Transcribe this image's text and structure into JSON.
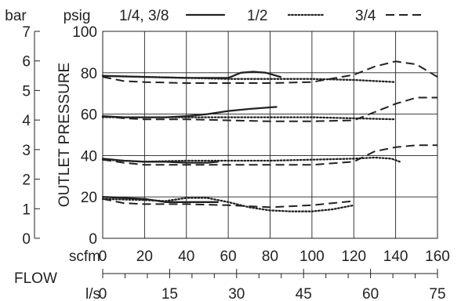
{
  "chart_data": {
    "type": "line",
    "ylabel": "OUTLET PRESSURE",
    "xlabel": "FLOW",
    "y_psig": {
      "unit": "psig",
      "range": [
        0,
        100
      ],
      "ticks": [
        0,
        20,
        40,
        60,
        80,
        100
      ]
    },
    "y_bar": {
      "unit": "bar",
      "range": [
        0,
        7
      ],
      "ticks": [
        0,
        1,
        2,
        3,
        4,
        5,
        6,
        7
      ]
    },
    "x_scfm": {
      "unit": "scfm",
      "range": [
        0,
        160
      ],
      "ticks": [
        0,
        20,
        40,
        60,
        80,
        100,
        120,
        140,
        160
      ]
    },
    "x_ls": {
      "unit": "l/s",
      "range": [
        0,
        75
      ],
      "ticks": [
        0,
        15,
        30,
        45,
        60,
        75
      ],
      "minor_step": 5
    },
    "grid": true,
    "legend_placement": "top",
    "series": [
      {
        "name": "1/4, 3/8",
        "style": "solid",
        "curves": [
          [
            [
              0,
              20
            ],
            [
              10,
              19.5
            ],
            [
              20,
              19
            ],
            [
              30,
              17.5
            ],
            [
              40,
              17.5
            ],
            [
              50,
              17.5
            ],
            [
              55,
              17.5
            ]
          ],
          [
            [
              0,
              38.5
            ],
            [
              10,
              37.5
            ],
            [
              20,
              37
            ],
            [
              30,
              37
            ],
            [
              40,
              36.5
            ],
            [
              50,
              36.5
            ],
            [
              55,
              37
            ]
          ],
          [
            [
              0,
              59
            ],
            [
              10,
              58.5
            ],
            [
              20,
              58.5
            ],
            [
              30,
              58.5
            ],
            [
              40,
              59
            ],
            [
              50,
              60
            ],
            [
              60,
              61.5
            ],
            [
              70,
              62.5
            ],
            [
              83,
              63.5
            ]
          ],
          [
            [
              0,
              78.5
            ],
            [
              20,
              78
            ],
            [
              40,
              77.5
            ],
            [
              60,
              77.5
            ],
            [
              66,
              80
            ],
            [
              72,
              80.5
            ],
            [
              78,
              80
            ],
            [
              85,
              78
            ]
          ]
        ]
      },
      {
        "name": "1/2",
        "style": "dotted",
        "curves": [
          [
            [
              0,
              19
            ],
            [
              20,
              18.5
            ],
            [
              30,
              18
            ],
            [
              40,
              19.5
            ],
            [
              50,
              19.5
            ],
            [
              60,
              17.5
            ],
            [
              70,
              15
            ],
            [
              80,
              13.5
            ],
            [
              90,
              13
            ],
            [
              100,
              13
            ],
            [
              110,
              14
            ],
            [
              120,
              16
            ]
          ],
          [
            [
              0,
              38
            ],
            [
              20,
              37
            ],
            [
              40,
              37.5
            ],
            [
              60,
              37.5
            ],
            [
              80,
              37.5
            ],
            [
              100,
              38
            ],
            [
              120,
              38.5
            ],
            [
              130,
              39
            ],
            [
              138,
              38.5
            ],
            [
              142,
              37
            ]
          ],
          [
            [
              0,
              58.5
            ],
            [
              20,
              58.5
            ],
            [
              40,
              58.5
            ],
            [
              60,
              58.5
            ],
            [
              80,
              58.5
            ],
            [
              100,
              58.5
            ],
            [
              120,
              58
            ],
            [
              140,
              57.5
            ]
          ],
          [
            [
              0,
              78.5
            ],
            [
              20,
              78
            ],
            [
              40,
              77.5
            ],
            [
              60,
              77
            ],
            [
              80,
              77
            ],
            [
              100,
              77
            ],
            [
              120,
              76.5
            ],
            [
              140,
              75.5
            ]
          ]
        ]
      },
      {
        "name": "3/4",
        "style": "dashed",
        "curves": [
          [
            [
              0,
              19
            ],
            [
              10,
              17
            ],
            [
              20,
              16.5
            ],
            [
              40,
              16.5
            ],
            [
              60,
              16
            ],
            [
              70,
              15.5
            ],
            [
              80,
              15
            ],
            [
              90,
              15.5
            ],
            [
              100,
              16
            ],
            [
              110,
              17
            ],
            [
              120,
              18
            ]
          ],
          [
            [
              0,
              38
            ],
            [
              10,
              36.5
            ],
            [
              20,
              35.5
            ],
            [
              40,
              35.5
            ],
            [
              60,
              35.5
            ],
            [
              80,
              35.5
            ],
            [
              100,
              35.5
            ],
            [
              120,
              37
            ],
            [
              130,
              42
            ],
            [
              140,
              44
            ],
            [
              150,
              45
            ],
            [
              160,
              45
            ]
          ],
          [
            [
              0,
              59
            ],
            [
              10,
              58
            ],
            [
              20,
              57.5
            ],
            [
              40,
              57.5
            ],
            [
              60,
              57
            ],
            [
              80,
              56.5
            ],
            [
              100,
              56.5
            ],
            [
              120,
              57
            ],
            [
              130,
              61
            ],
            [
              140,
              65
            ],
            [
              150,
              68
            ],
            [
              160,
              68
            ]
          ],
          [
            [
              0,
              78
            ],
            [
              10,
              76
            ],
            [
              20,
              75.5
            ],
            [
              40,
              75
            ],
            [
              60,
              75
            ],
            [
              80,
              75
            ],
            [
              100,
              75.5
            ],
            [
              120,
              79
            ],
            [
              130,
              83
            ],
            [
              140,
              85.5
            ],
            [
              150,
              84
            ],
            [
              160,
              78
            ]
          ]
        ]
      }
    ]
  }
}
